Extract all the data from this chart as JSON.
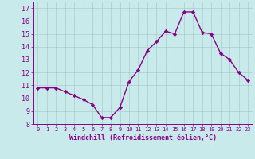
{
  "x": [
    0,
    1,
    2,
    3,
    4,
    5,
    6,
    7,
    8,
    9,
    10,
    11,
    12,
    13,
    14,
    15,
    16,
    17,
    18,
    19,
    20,
    21,
    22,
    23
  ],
  "y": [
    10.8,
    10.8,
    10.8,
    10.5,
    10.2,
    9.9,
    9.5,
    8.5,
    8.5,
    9.3,
    11.3,
    12.2,
    13.7,
    14.4,
    15.2,
    15.0,
    16.7,
    16.7,
    15.1,
    15.0,
    13.5,
    13.0,
    12.0,
    11.4
  ],
  "line_color": "#880088",
  "marker": "D",
  "marker_size": 2.2,
  "line_width": 1.0,
  "bg_color": "#c8eaea",
  "grid_color": "#aacccc",
  "tick_color": "#880088",
  "label_color": "#880088",
  "xlabel": "Windchill (Refroidissement éolien,°C)",
  "ylabel": "",
  "ylim": [
    8,
    17.5
  ],
  "xlim": [
    -0.5,
    23.5
  ],
  "yticks": [
    8,
    9,
    10,
    11,
    12,
    13,
    14,
    15,
    16,
    17
  ],
  "xticks": [
    0,
    1,
    2,
    3,
    4,
    5,
    6,
    7,
    8,
    9,
    10,
    11,
    12,
    13,
    14,
    15,
    16,
    17,
    18,
    19,
    20,
    21,
    22,
    23
  ],
  "xlabel_fontsize": 6.0,
  "tick_fontsize": 6.0,
  "xtick_fontsize": 5.0
}
